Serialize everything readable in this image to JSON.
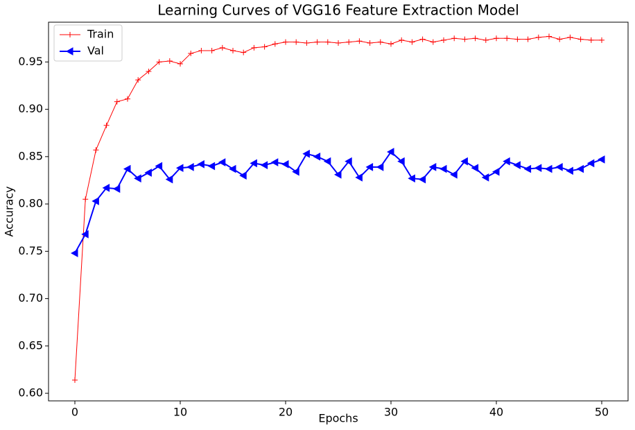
{
  "chart_data": {
    "type": "line",
    "title": "Learning Curves of VGG16 Feature Extraction Model",
    "xlabel": "Epochs",
    "ylabel": "Accuracy",
    "x": [
      0,
      1,
      2,
      3,
      4,
      5,
      6,
      7,
      8,
      9,
      10,
      11,
      12,
      13,
      14,
      15,
      16,
      17,
      18,
      19,
      20,
      21,
      22,
      23,
      24,
      25,
      26,
      27,
      28,
      29,
      30,
      31,
      32,
      33,
      34,
      35,
      36,
      37,
      38,
      39,
      40,
      41,
      42,
      43,
      44,
      45,
      46,
      47,
      48,
      49,
      50
    ],
    "series": [
      {
        "name": "Train",
        "color": "#ff0000",
        "marker": "+",
        "values": [
          0.614,
          0.805,
          0.857,
          0.883,
          0.908,
          0.911,
          0.931,
          0.94,
          0.95,
          0.951,
          0.948,
          0.959,
          0.962,
          0.962,
          0.965,
          0.962,
          0.96,
          0.965,
          0.966,
          0.969,
          0.971,
          0.971,
          0.97,
          0.971,
          0.971,
          0.97,
          0.971,
          0.972,
          0.97,
          0.971,
          0.969,
          0.973,
          0.971,
          0.974,
          0.971,
          0.973,
          0.975,
          0.974,
          0.975,
          0.973,
          0.975,
          0.975,
          0.974,
          0.974,
          0.976,
          0.977,
          0.974,
          0.976,
          0.974,
          0.973,
          0.973
        ]
      },
      {
        "name": "Val",
        "color": "#0000ff",
        "marker": "<",
        "values": [
          0.748,
          0.768,
          0.803,
          0.817,
          0.816,
          0.837,
          0.827,
          0.833,
          0.84,
          0.826,
          0.838,
          0.839,
          0.842,
          0.84,
          0.844,
          0.837,
          0.83,
          0.843,
          0.841,
          0.844,
          0.842,
          0.834,
          0.853,
          0.85,
          0.845,
          0.831,
          0.845,
          0.828,
          0.839,
          0.839,
          0.855,
          0.845,
          0.827,
          0.826,
          0.839,
          0.837,
          0.831,
          0.845,
          0.838,
          0.828,
          0.834,
          0.845,
          0.841,
          0.837,
          0.838,
          0.837,
          0.839,
          0.835,
          0.837,
          0.843,
          0.847
        ]
      }
    ],
    "xlim": [
      -2.5,
      52.5
    ],
    "ylim": [
      0.592,
      0.992
    ],
    "xticks": [
      0,
      10,
      20,
      30,
      40,
      50
    ],
    "yticks": [
      {
        "value": 0.6,
        "label": "0.60"
      },
      {
        "value": 0.65,
        "label": "0.65"
      },
      {
        "value": 0.7,
        "label": "0.70"
      },
      {
        "value": 0.75,
        "label": "0.75"
      },
      {
        "value": 0.8,
        "label": "0.80"
      },
      {
        "value": 0.85,
        "label": "0.85"
      },
      {
        "value": 0.9,
        "label": "0.90"
      },
      {
        "value": 0.95,
        "label": "0.95"
      }
    ],
    "grid": false,
    "legend": "upper left"
  }
}
